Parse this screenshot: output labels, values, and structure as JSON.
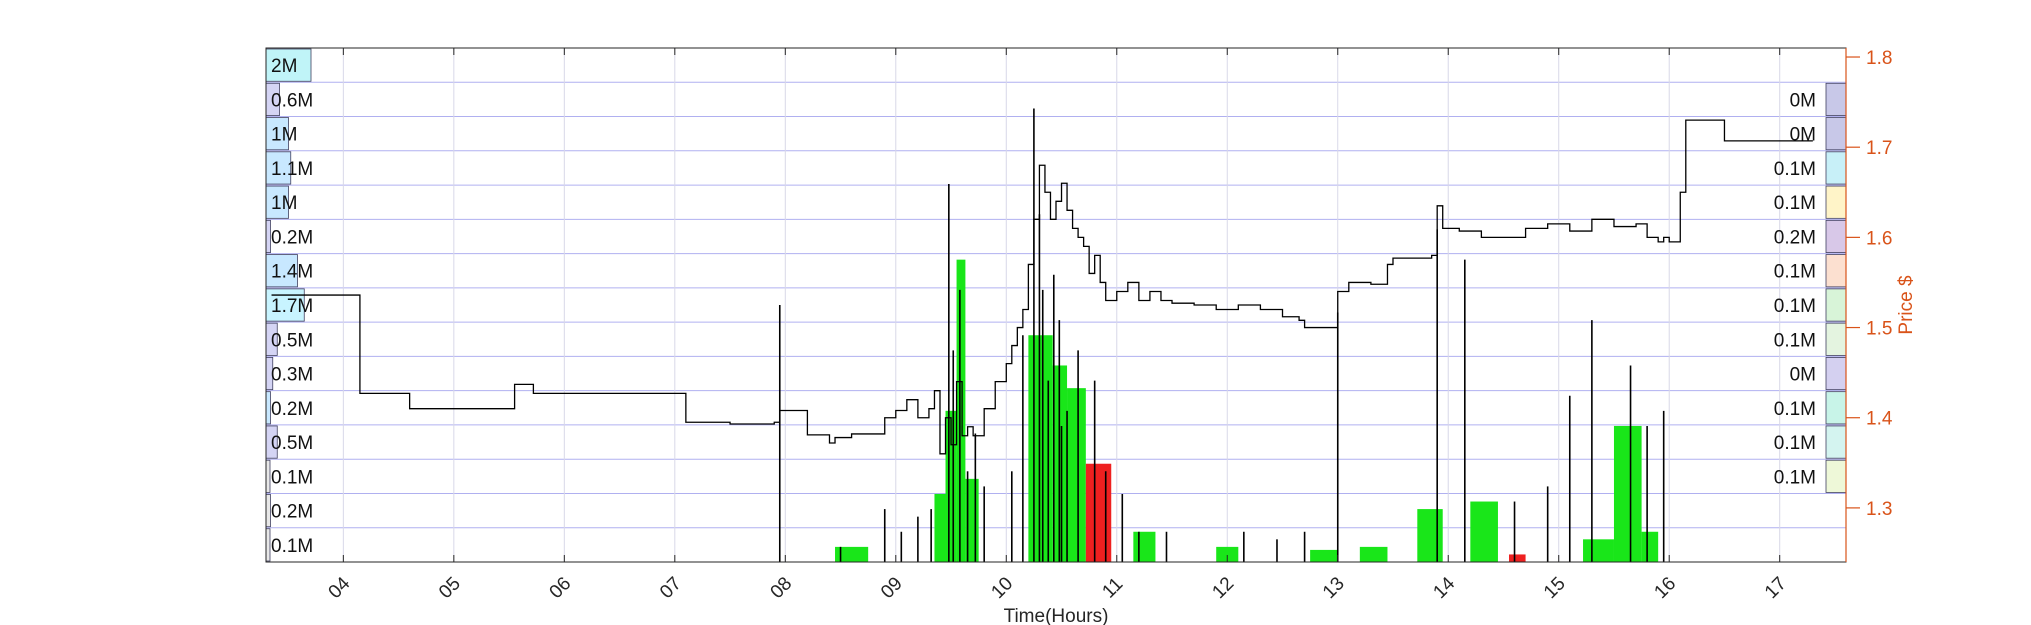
{
  "chart_data": {
    "type": "line",
    "title": "",
    "xlabel": "Time(Hours)",
    "ylabel": "Price $",
    "xlim": [
      3.3,
      17.6
    ],
    "ylim": [
      1.24,
      1.81
    ],
    "x_ticks": [
      4,
      5,
      6,
      7,
      8,
      9,
      10,
      11,
      12,
      13,
      14,
      15,
      16,
      17
    ],
    "x_tick_labels": [
      "04",
      "05",
      "06",
      "07",
      "08",
      "09",
      "10",
      "11",
      "12",
      "13",
      "14",
      "15",
      "16",
      "17"
    ],
    "y_ticks": [
      1.3,
      1.4,
      1.5,
      1.6,
      1.7,
      1.8
    ],
    "y_tick_labels": [
      "1.3",
      "1.4",
      "1.5",
      "1.6",
      "1.7",
      "1.8"
    ],
    "grid": true,
    "colors": {
      "price_line": "#000000",
      "right_axis": "#d95319",
      "grid_major": "#b0b0f0",
      "grid_minor": "#d8d8e8",
      "volume_up": "#19e619",
      "volume_down": "#ee2020",
      "volume_tick": "#000000"
    },
    "price_series": {
      "name": "Price",
      "x": [
        3.35,
        3.9,
        4.15,
        4.6,
        4.6,
        5.55,
        5.55,
        5.72,
        5.72,
        7.05,
        7.1,
        7.5,
        7.9,
        7.95,
        8.0,
        8.2,
        8.4,
        8.45,
        8.6,
        8.75,
        8.9,
        9.0,
        9.1,
        9.2,
        9.3,
        9.35,
        9.4,
        9.45,
        9.5,
        9.55,
        9.6,
        9.65,
        9.7,
        9.8,
        9.9,
        10.0,
        10.05,
        10.1,
        10.15,
        10.2,
        10.25,
        10.3,
        10.35,
        10.4,
        10.45,
        10.5,
        10.55,
        10.6,
        10.65,
        10.7,
        10.75,
        10.8,
        10.85,
        10.9,
        11.0,
        11.1,
        11.2,
        11.3,
        11.4,
        11.5,
        11.7,
        11.9,
        12.1,
        12.3,
        12.5,
        12.65,
        12.7,
        12.95,
        13.0,
        13.1,
        13.3,
        13.45,
        13.5,
        13.75,
        13.85,
        13.9,
        13.95,
        14.1,
        14.3,
        14.5,
        14.7,
        14.9,
        15.1,
        15.3,
        15.5,
        15.7,
        15.8,
        15.9,
        15.95,
        16.0,
        16.1,
        16.15,
        16.45,
        16.5,
        17.3
      ],
      "y": [
        1.536,
        1.536,
        1.427,
        1.427,
        1.41,
        1.41,
        1.437,
        1.437,
        1.427,
        1.427,
        1.395,
        1.393,
        1.395,
        1.408,
        1.408,
        1.381,
        1.372,
        1.378,
        1.382,
        1.382,
        1.4,
        1.408,
        1.42,
        1.4,
        1.41,
        1.43,
        1.36,
        1.4,
        1.37,
        1.44,
        1.38,
        1.39,
        1.38,
        1.41,
        1.44,
        1.46,
        1.48,
        1.5,
        1.52,
        1.57,
        1.62,
        1.68,
        1.65,
        1.62,
        1.64,
        1.66,
        1.63,
        1.61,
        1.6,
        1.59,
        1.56,
        1.58,
        1.55,
        1.53,
        1.54,
        1.55,
        1.53,
        1.54,
        1.53,
        1.527,
        1.525,
        1.52,
        1.525,
        1.52,
        1.512,
        1.508,
        1.5,
        1.5,
        1.54,
        1.55,
        1.548,
        1.57,
        1.577,
        1.577,
        1.58,
        1.635,
        1.61,
        1.607,
        1.6,
        1.6,
        1.61,
        1.615,
        1.607,
        1.62,
        1.612,
        1.615,
        1.6,
        1.595,
        1.6,
        1.595,
        1.65,
        1.73,
        1.73,
        1.707,
        1.707
      ]
    },
    "volume_series": [
      {
        "name": "Buy volume",
        "color": "#19e619",
        "bars": [
          {
            "x0": 8.45,
            "x1": 8.75,
            "y": 0.01
          },
          {
            "x0": 9.35,
            "x1": 9.45,
            "y": 0.045
          },
          {
            "x0": 9.45,
            "x1": 9.55,
            "y": 0.1
          },
          {
            "x0": 9.55,
            "x1": 9.63,
            "y": 0.2
          },
          {
            "x0": 9.63,
            "x1": 9.75,
            "y": 0.055
          },
          {
            "x0": 10.2,
            "x1": 10.42,
            "y": 0.15
          },
          {
            "x0": 10.42,
            "x1": 10.55,
            "y": 0.13
          },
          {
            "x0": 10.55,
            "x1": 10.72,
            "y": 0.115
          },
          {
            "x0": 11.15,
            "x1": 11.35,
            "y": 0.02
          },
          {
            "x0": 11.9,
            "x1": 12.1,
            "y": 0.01
          },
          {
            "x0": 12.75,
            "x1": 13.0,
            "y": 0.008
          },
          {
            "x0": 13.2,
            "x1": 13.45,
            "y": 0.01
          },
          {
            "x0": 13.72,
            "x1": 13.95,
            "y": 0.035
          },
          {
            "x0": 14.2,
            "x1": 14.45,
            "y": 0.04
          },
          {
            "x0": 15.22,
            "x1": 15.5,
            "y": 0.015
          },
          {
            "x0": 15.5,
            "x1": 15.75,
            "y": 0.09
          },
          {
            "x0": 15.75,
            "x1": 15.9,
            "y": 0.02
          }
        ]
      },
      {
        "name": "Sell volume",
        "color": "#ee2020",
        "bars": [
          {
            "x0": 10.72,
            "x1": 10.95,
            "y": 0.065
          },
          {
            "x0": 14.55,
            "x1": 14.7,
            "y": 0.005
          }
        ]
      }
    ],
    "volume_ticks": {
      "x": [
        7.95,
        8.5,
        8.9,
        9.05,
        9.2,
        9.32,
        9.48,
        9.52,
        9.58,
        9.65,
        9.72,
        9.8,
        10.05,
        10.15,
        10.25,
        10.3,
        10.33,
        10.38,
        10.43,
        10.48,
        10.5,
        10.55,
        10.65,
        10.8,
        10.9,
        11.05,
        11.2,
        11.45,
        12.15,
        12.45,
        12.7,
        13.0,
        13.9,
        14.15,
        14.6,
        14.9,
        15.1,
        15.3,
        15.65,
        15.8,
        15.95
      ],
      "y": [
        0.17,
        0.01,
        0.035,
        0.02,
        0.03,
        0.035,
        0.25,
        0.14,
        0.18,
        0.06,
        0.085,
        0.05,
        0.06,
        0.15,
        0.3,
        0.23,
        0.18,
        0.12,
        0.19,
        0.16,
        0.09,
        0.1,
        0.14,
        0.12,
        0.06,
        0.045,
        0.02,
        0.02,
        0.02,
        0.015,
        0.02,
        0.165,
        0.22,
        0.2,
        0.04,
        0.05,
        0.11,
        0.16,
        0.13,
        0.09,
        0.1
      ]
    },
    "volume_profile": {
      "left_labels": [
        "2M",
        "0.6M",
        "1M",
        "1.1M",
        "1M",
        "0.2M",
        "1.4M",
        "1.7M",
        "0.5M",
        "0.3M",
        "0.2M",
        "0.5M",
        "0.1M",
        "0.2M",
        "0.1M"
      ],
      "left_values": [
        2.0,
        0.6,
        1.0,
        1.1,
        1.0,
        0.2,
        1.4,
        1.7,
        0.5,
        0.3,
        0.2,
        0.5,
        0.1,
        0.2,
        0.1
      ],
      "left_colors": [
        "#c0f4f8",
        "#d4d4f4",
        "#c8e8ff",
        "#c8e8ff",
        "#c8e8ff",
        "#d4d4f4",
        "#c8e8ff",
        "#c8f4ff",
        "#d4d4f4",
        "#d4d4f4",
        "#c8e8ff",
        "#d4d4f4",
        "#e8e8e8",
        "#e8e8e8",
        "#e8e8e8"
      ],
      "right_labels": [
        "0M",
        "0M",
        "0.1M",
        "0.1M",
        "0.2M",
        "0.1M",
        "0.1M",
        "0.1M",
        "0M",
        "0.1M",
        "0.1M",
        "0.1M"
      ],
      "right_colors": [
        "#c8c8e8",
        "#c8c8e8",
        "#c8f0f8",
        "#fff4c8",
        "#d8c8e8",
        "#fce0d0",
        "#d8f4d8",
        "#e4f4e0",
        "#d4d0f0",
        "#c8f4e8",
        "#d4f4f0",
        "#eef8d8"
      ]
    }
  }
}
